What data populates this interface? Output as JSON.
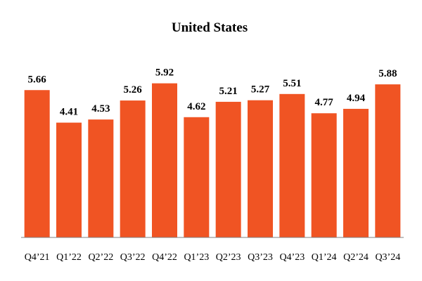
{
  "chart_data": {
    "type": "bar",
    "title": "United States",
    "categories": [
      "Q4’21",
      "Q1’22",
      "Q2’22",
      "Q3’22",
      "Q4’22",
      "Q1’23",
      "Q2’23",
      "Q3’23",
      "Q4’23",
      "Q1’24",
      "Q2’24",
      "Q3’24"
    ],
    "series": [
      {
        "name": "United States",
        "values": [
          5.66,
          4.41,
          4.53,
          5.26,
          5.92,
          4.62,
          5.21,
          5.27,
          5.51,
          4.77,
          4.94,
          5.88
        ],
        "labels": [
          "5.66",
          "4.41",
          "4.53",
          "5.26",
          "5.92",
          "4.62",
          "5.21",
          "5.27",
          "5.51",
          "4.77",
          "4.94",
          "5.88"
        ]
      }
    ],
    "xlabel": "",
    "ylabel": "",
    "ylim": [
      0,
      6.8
    ],
    "grid": false,
    "legend": "none",
    "colors": {
      "bar": "#f05423",
      "axis": "#808080",
      "text": "#000000"
    }
  }
}
